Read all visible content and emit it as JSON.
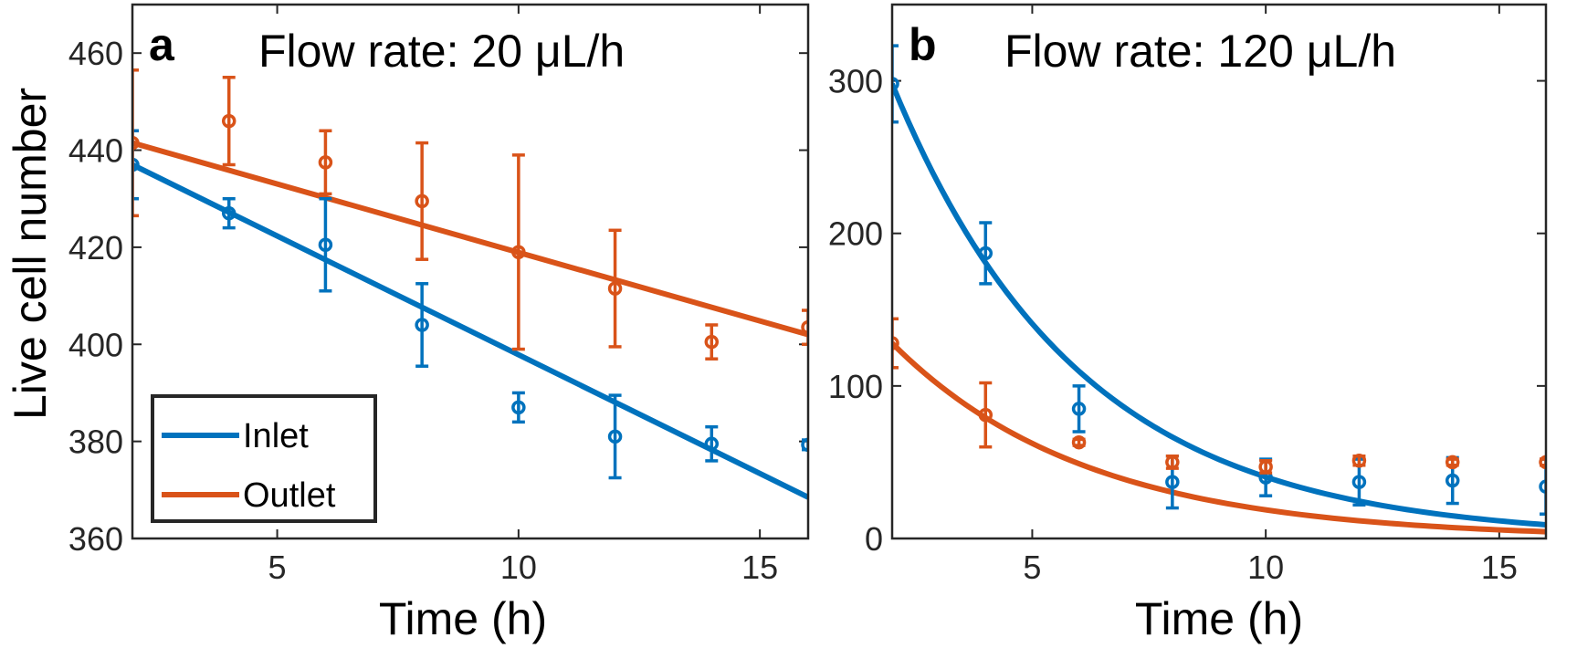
{
  "figure": {
    "ylabel": "Live cell number",
    "legend": {
      "placement": "bottom-left",
      "entries": [
        {
          "label": "Inlet",
          "color": "#0072BD"
        },
        {
          "label": "Outlet",
          "color": "#D95319"
        }
      ]
    }
  },
  "chart_data": [
    {
      "type": "scatter",
      "panel_letter": "a",
      "title": "Flow rate: 20 μL/h",
      "xlabel": "Time (h)",
      "ylabel": "Live cell number",
      "xlim": [
        2,
        16
      ],
      "ylim": [
        360,
        470
      ],
      "xticks": [
        5,
        10,
        15
      ],
      "yticks": [
        360,
        380,
        400,
        420,
        440,
        460
      ],
      "series": [
        {
          "name": "Inlet",
          "color": "#0072BD",
          "x": [
            2,
            4,
            6,
            8,
            10,
            12,
            14,
            16
          ],
          "y": [
            437,
            427,
            420.5,
            404,
            387,
            381,
            379.5,
            379.3
          ],
          "err": [
            7,
            3,
            9.5,
            8.5,
            3,
            8.5,
            3.5,
            1
          ],
          "fit": {
            "model": "linear",
            "from": [
              2,
              437
            ],
            "to": [
              16,
              368.5
            ]
          }
        },
        {
          "name": "Outlet",
          "color": "#D95319",
          "x": [
            2,
            4,
            6,
            8,
            10,
            12,
            14,
            16
          ],
          "y": [
            441.5,
            446,
            437.5,
            429.5,
            419,
            411.5,
            400.5,
            403.5
          ],
          "err": [
            15,
            9,
            6.5,
            12,
            20,
            12,
            3.5,
            3.5
          ],
          "fit": {
            "model": "linear",
            "from": [
              2,
              441.5
            ],
            "to": [
              16,
              402
            ]
          }
        }
      ]
    },
    {
      "type": "scatter",
      "panel_letter": "b",
      "title": "Flow rate: 120 μL/h",
      "xlabel": "Time (h)",
      "xlim": [
        2,
        16
      ],
      "ylim": [
        0,
        350
      ],
      "xticks": [
        5,
        10,
        15
      ],
      "yticks": [
        0,
        100,
        200,
        300
      ],
      "series": [
        {
          "name": "Inlet",
          "color": "#0072BD",
          "x": [
            2,
            4,
            6,
            8,
            10,
            12,
            14,
            16
          ],
          "y": [
            298,
            187,
            85,
            37,
            40,
            37,
            38,
            34
          ],
          "err": [
            25,
            20,
            15,
            17,
            12,
            15,
            15,
            18
          ],
          "fit": {
            "model": "exponential",
            "a": 298,
            "k": 0.25
          }
        },
        {
          "name": "Outlet",
          "color": "#D95319",
          "x": [
            2,
            4,
            6,
            8,
            10,
            12,
            14,
            16
          ],
          "y": [
            128,
            81,
            63,
            50,
            47,
            51,
            50,
            50
          ],
          "err": [
            16,
            21,
            2,
            4,
            4,
            3,
            2,
            2
          ],
          "fit": {
            "model": "exponential",
            "a": 128,
            "k": 0.24
          }
        }
      ]
    }
  ]
}
